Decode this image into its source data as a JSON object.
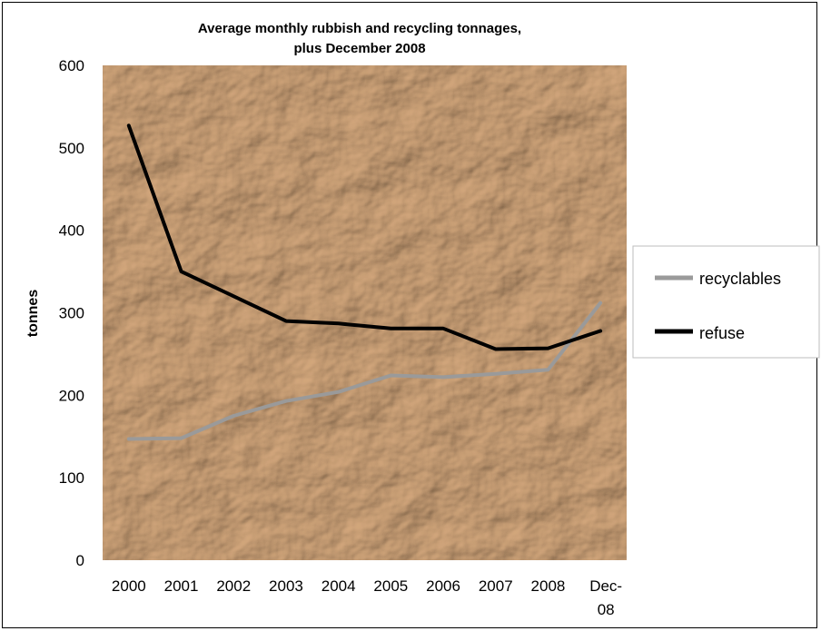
{
  "chart_data": {
    "type": "line",
    "title": [
      "Average monthly rubbish and recycling tonnages,",
      "plus December 2008"
    ],
    "xlabel": "",
    "ylabel": "tonnes",
    "categories": [
      [
        "2000"
      ],
      [
        "2001"
      ],
      [
        "2002"
      ],
      [
        "2003"
      ],
      [
        "2004"
      ],
      [
        "2005"
      ],
      [
        "2006"
      ],
      [
        "2007"
      ],
      [
        "2008"
      ],
      [
        "Dec-",
        "08"
      ]
    ],
    "ylim": [
      0,
      600
    ],
    "yticks": [
      "0",
      "100",
      "200",
      "300",
      "400",
      "500",
      "600"
    ],
    "grid": false,
    "legend_position": "right",
    "series": [
      {
        "name": "recyclables",
        "color": "#9a9a9a",
        "values": [
          147,
          148,
          175,
          193,
          204,
          224,
          222,
          226,
          231,
          312
        ]
      },
      {
        "name": "refuse",
        "color": "#000000",
        "values": [
          527,
          350,
          320,
          290,
          287,
          281,
          281,
          256,
          257,
          278
        ]
      }
    ],
    "plot_background": "crumpled-paper",
    "plot_background_color": "#b58456"
  }
}
